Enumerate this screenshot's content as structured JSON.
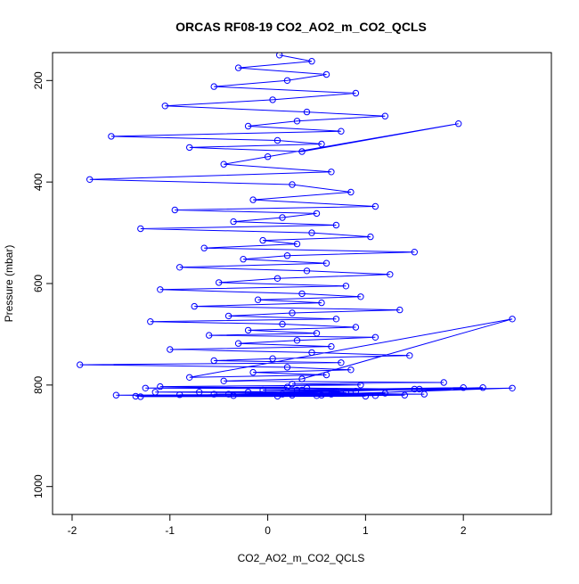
{
  "chart_data": {
    "type": "scatter",
    "title": "ORCAS RF08-19 CO2_AO2_m_CO2_QCLS",
    "xlabel": "CO2_AO2_m_CO2_QCLS",
    "ylabel": "Pressure (mbar)",
    "xlim": [
      -2.2,
      2.9
    ],
    "ylim": [
      1055,
      145
    ],
    "y_reversed": true,
    "x_ticks": [
      -2,
      -1,
      0,
      1,
      2
    ],
    "y_ticks": [
      200,
      400,
      600,
      800,
      1000
    ],
    "grid": false,
    "legend": "none",
    "colors": {
      "series": "#0000ff",
      "axes": "#000000",
      "background": "#ffffff"
    },
    "series": [
      {
        "style": "points-and-lines",
        "marker": "open-circle",
        "x": [
          0.12,
          0.45,
          -0.3,
          0.6,
          0.2,
          -0.55,
          0.9,
          0.05,
          -1.05,
          0.4,
          1.2,
          0.3,
          -0.2,
          0.75,
          -1.6,
          0.1,
          0.55,
          -0.8,
          0.35,
          1.95,
          0.0,
          -0.45,
          0.65,
          -1.82,
          0.25,
          0.85,
          -0.15,
          1.1,
          -0.95,
          0.5,
          0.15,
          -0.35,
          0.7,
          -1.3,
          0.45,
          1.05,
          -0.05,
          0.3,
          -0.65,
          1.5,
          0.2,
          -0.25,
          0.6,
          -0.9,
          0.4,
          1.25,
          0.1,
          -0.5,
          0.8,
          -1.1,
          0.35,
          0.95,
          -0.1,
          0.55,
          -0.75,
          1.35,
          0.25,
          -0.4,
          0.7,
          -1.2,
          0.15,
          0.9,
          -0.2,
          0.5,
          -0.6,
          1.1,
          0.3,
          -0.3,
          0.65,
          -1.0,
          0.45,
          1.45,
          0.05,
          -0.55,
          0.75,
          -1.92,
          0.2,
          0.85,
          -0.15,
          0.6,
          -0.8,
          2.5,
          0.35,
          -0.45,
          1.8,
          0.25,
          0.95,
          -1.1,
          0.4,
          1.55,
          -0.05,
          0.7,
          -0.7,
          1.2,
          0.15,
          0.55,
          -0.35,
          1.0,
          -1.3,
          2.0,
          0.3,
          0.8,
          -0.55,
          1.4,
          0.1,
          -1.55,
          0.65,
          2.5,
          -0.2,
          0.45,
          1.6,
          -0.9,
          0.25,
          1.1,
          -1.35,
          0.5,
          2.2,
          -0.4,
          0.7,
          -1.15,
          0.9,
          0.35,
          1.5,
          -1.25,
          0.2
        ],
        "y": [
          150,
          162,
          175,
          188,
          200,
          212,
          225,
          238,
          250,
          262,
          270,
          280,
          290,
          300,
          310,
          318,
          325,
          332,
          340,
          285,
          350,
          365,
          380,
          395,
          405,
          420,
          435,
          448,
          455,
          462,
          470,
          478,
          485,
          492,
          500,
          508,
          515,
          522,
          530,
          538,
          545,
          552,
          560,
          568,
          575,
          582,
          590,
          598,
          605,
          612,
          620,
          626,
          632,
          638,
          645,
          652,
          658,
          664,
          670,
          675,
          680,
          686,
          692,
          698,
          702,
          706,
          712,
          718,
          724,
          730,
          736,
          742,
          748,
          752,
          756,
          760,
          765,
          770,
          775,
          780,
          785,
          670,
          788,
          792,
          795,
          798,
          800,
          803,
          806,
          808,
          810,
          812,
          814,
          816,
          818,
          820,
          821,
          822,
          823,
          805,
          810,
          815,
          818,
          820,
          822,
          820,
          818,
          806,
          814,
          816,
          818,
          819,
          820,
          821,
          822,
          821,
          805,
          818,
          816,
          814,
          812,
          810,
          808,
          806,
          804
        ]
      }
    ]
  }
}
